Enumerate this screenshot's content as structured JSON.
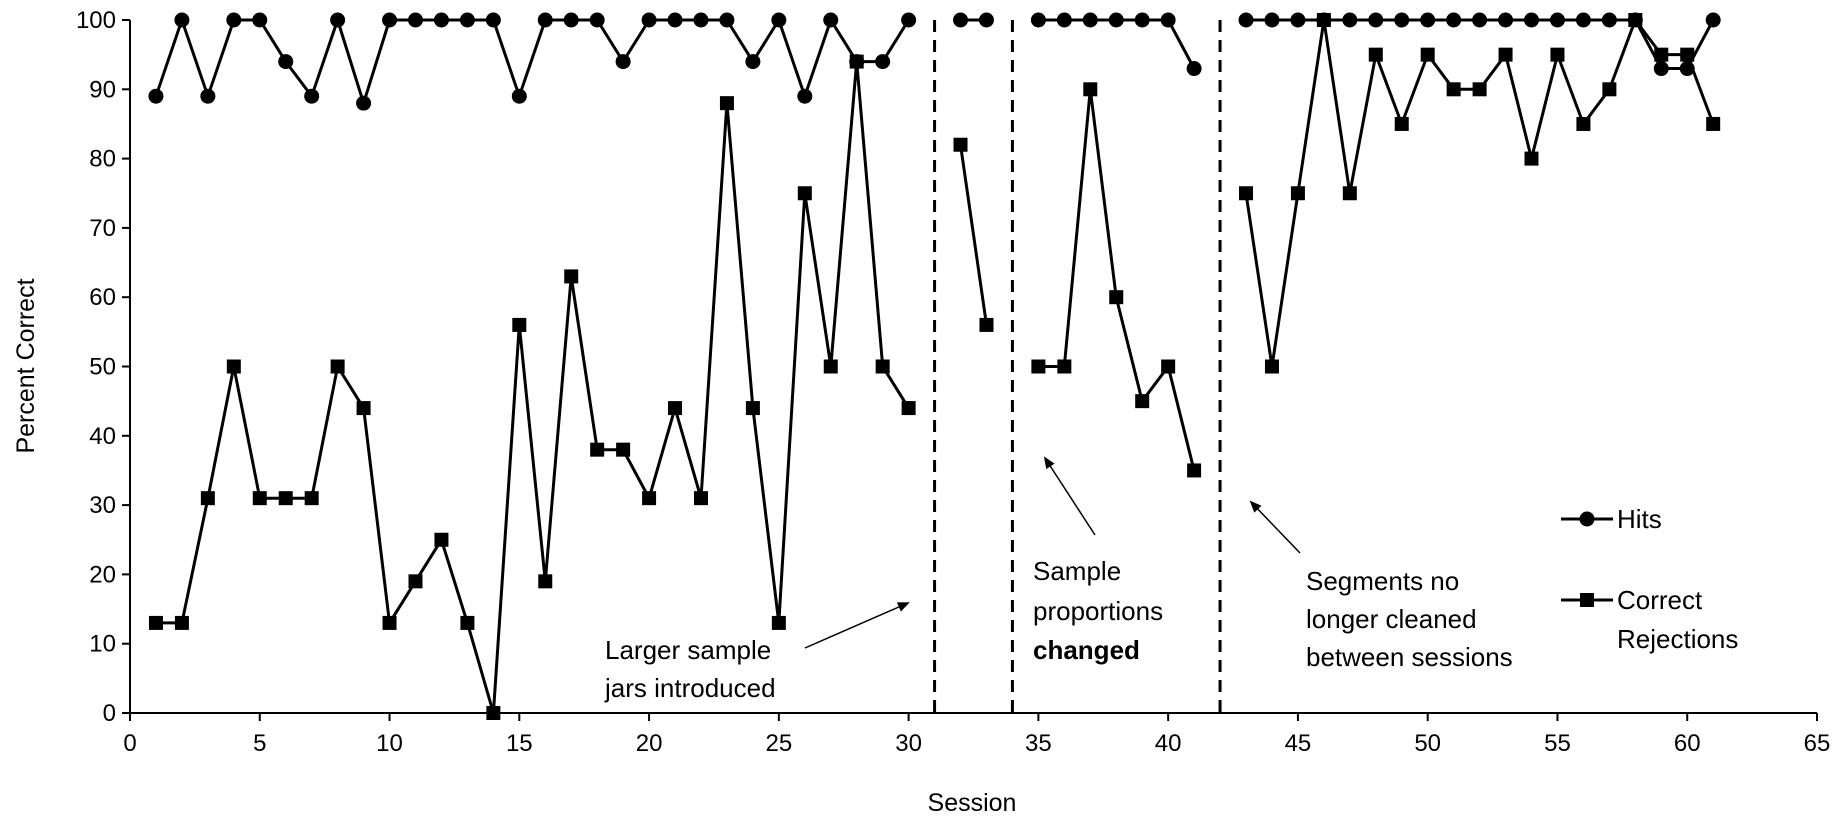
{
  "chart_data": {
    "type": "line",
    "title": "",
    "xlabel": "Session",
    "ylabel": "Percent Correct",
    "xlim": [
      0,
      65
    ],
    "ylim": [
      0,
      100
    ],
    "xticks": [
      0,
      5,
      10,
      15,
      20,
      25,
      30,
      35,
      40,
      45,
      50,
      55,
      60,
      65
    ],
    "yticks": [
      0,
      10,
      20,
      30,
      40,
      50,
      60,
      70,
      80,
      90,
      100
    ],
    "grid": false,
    "legend_position": "right",
    "phase_boundaries": [
      31,
      34,
      42
    ],
    "series": [
      {
        "name": "Hits",
        "marker": "circle",
        "segments": [
          [
            [
              1,
              89
            ],
            [
              2,
              100
            ],
            [
              3,
              89
            ],
            [
              4,
              100
            ],
            [
              5,
              100
            ],
            [
              6,
              94
            ],
            [
              7,
              89
            ],
            [
              8,
              100
            ],
            [
              9,
              88
            ],
            [
              10,
              100
            ],
            [
              11,
              100
            ],
            [
              12,
              100
            ],
            [
              13,
              100
            ],
            [
              14,
              100
            ],
            [
              15,
              89
            ],
            [
              16,
              100
            ],
            [
              17,
              100
            ],
            [
              18,
              100
            ],
            [
              19,
              94
            ],
            [
              20,
              100
            ],
            [
              21,
              100
            ],
            [
              22,
              100
            ],
            [
              23,
              100
            ],
            [
              24,
              94
            ],
            [
              25,
              100
            ],
            [
              26,
              89
            ],
            [
              27,
              100
            ],
            [
              28,
              94
            ],
            [
              29,
              94
            ],
            [
              30,
              100
            ]
          ],
          [
            [
              32,
              100
            ],
            [
              33,
              100
            ]
          ],
          [
            [
              35,
              100
            ],
            [
              36,
              100
            ],
            [
              37,
              100
            ],
            [
              38,
              100
            ],
            [
              39,
              100
            ],
            [
              40,
              100
            ],
            [
              41,
              93
            ]
          ],
          [
            [
              43,
              100
            ],
            [
              44,
              100
            ],
            [
              45,
              100
            ],
            [
              46,
              100
            ],
            [
              47,
              100
            ],
            [
              48,
              100
            ],
            [
              49,
              100
            ],
            [
              50,
              100
            ],
            [
              51,
              100
            ],
            [
              52,
              100
            ],
            [
              53,
              100
            ],
            [
              54,
              100
            ],
            [
              55,
              100
            ],
            [
              56,
              100
            ],
            [
              57,
              100
            ],
            [
              58,
              100
            ],
            [
              59,
              93
            ],
            [
              60,
              93
            ],
            [
              61,
              100
            ]
          ]
        ]
      },
      {
        "name": "Correct Rejections",
        "marker": "square",
        "segments": [
          [
            [
              1,
              13
            ],
            [
              2,
              13
            ],
            [
              3,
              31
            ],
            [
              4,
              50
            ],
            [
              5,
              31
            ],
            [
              6,
              31
            ],
            [
              7,
              31
            ],
            [
              8,
              50
            ],
            [
              9,
              44
            ],
            [
              10,
              13
            ],
            [
              11,
              19
            ],
            [
              12,
              25
            ],
            [
              13,
              13
            ],
            [
              14,
              0
            ],
            [
              15,
              56
            ],
            [
              16,
              19
            ],
            [
              17,
              63
            ],
            [
              18,
              38
            ],
            [
              19,
              38
            ],
            [
              20,
              31
            ],
            [
              21,
              44
            ],
            [
              22,
              31
            ],
            [
              23,
              88
            ],
            [
              24,
              44
            ],
            [
              25,
              13
            ],
            [
              26,
              75
            ],
            [
              27,
              50
            ],
            [
              28,
              94
            ],
            [
              29,
              50
            ],
            [
              30,
              44
            ]
          ],
          [
            [
              32,
              82
            ],
            [
              33,
              56
            ]
          ],
          [
            [
              35,
              50
            ],
            [
              36,
              50
            ],
            [
              37,
              90
            ],
            [
              38,
              60
            ],
            [
              39,
              45
            ],
            [
              40,
              50
            ],
            [
              41,
              35
            ]
          ],
          [
            [
              43,
              75
            ],
            [
              44,
              50
            ],
            [
              45,
              75
            ],
            [
              46,
              100
            ],
            [
              47,
              75
            ],
            [
              48,
              95
            ],
            [
              49,
              85
            ],
            [
              50,
              95
            ],
            [
              51,
              90
            ],
            [
              52,
              90
            ],
            [
              53,
              95
            ],
            [
              54,
              80
            ],
            [
              55,
              95
            ],
            [
              56,
              85
            ],
            [
              57,
              90
            ],
            [
              58,
              100
            ],
            [
              59,
              95
            ],
            [
              60,
              95
            ],
            [
              61,
              85
            ]
          ]
        ]
      }
    ],
    "annotations": [
      {
        "lines": [
          "Larger sample",
          "jars introduced"
        ],
        "bold_lines": []
      },
      {
        "lines": [
          "Sample",
          "proportions",
          "changed"
        ],
        "bold_lines": [
          2
        ]
      },
      {
        "lines": [
          "Segments no",
          "longer cleaned",
          "between sessions"
        ],
        "bold_lines": []
      }
    ]
  }
}
